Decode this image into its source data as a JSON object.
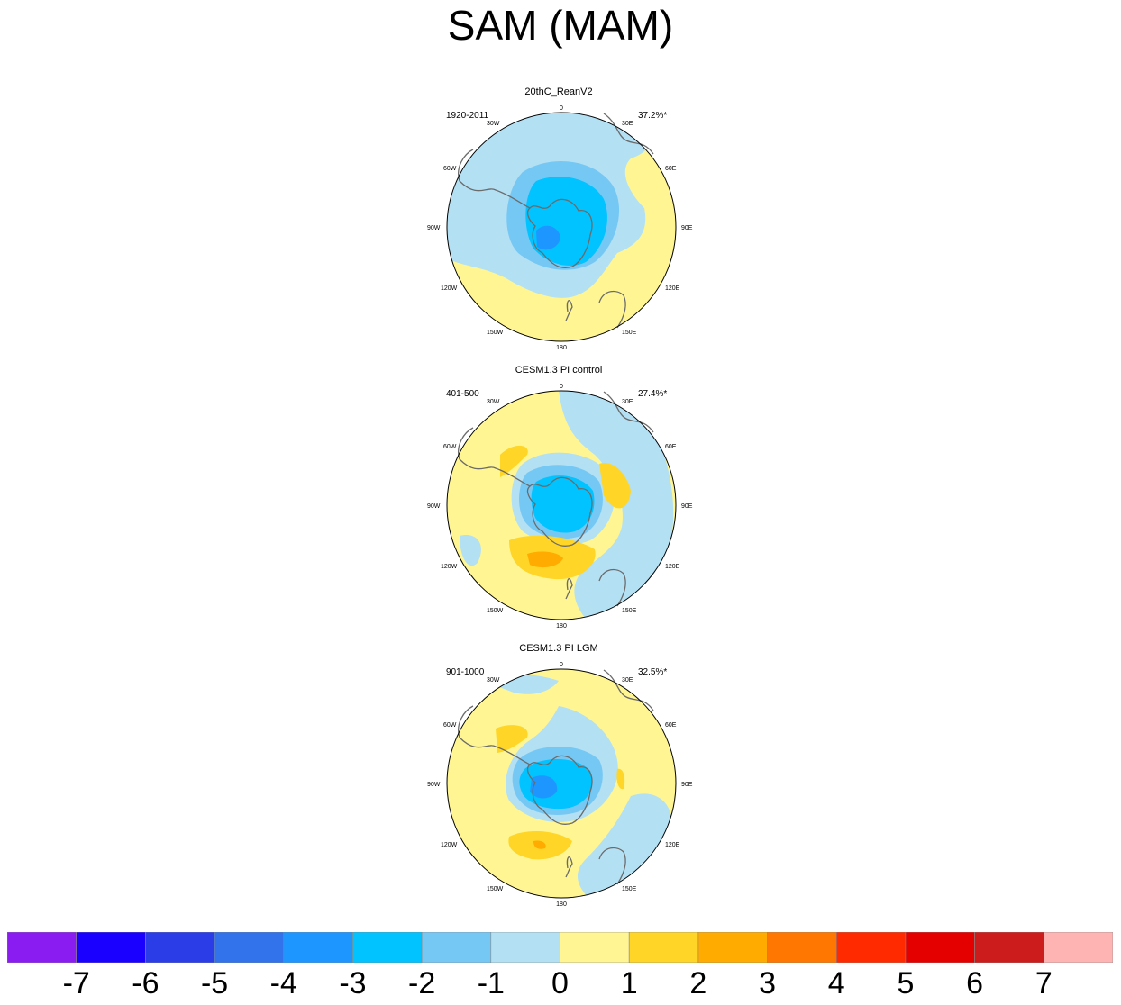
{
  "title": "SAM (MAM)",
  "panels": [
    {
      "title": "20thC_ReanV2",
      "period": "1920-2011",
      "variance": "37.2%*"
    },
    {
      "title": "CESM1.3 PI control",
      "period": "401-500",
      "variance": "27.4%*"
    },
    {
      "title": "CESM1.3 PI LGM",
      "period": "901-1000",
      "variance": "32.5%*"
    }
  ],
  "longitude_labels": [
    "0",
    "30E",
    "60E",
    "90E",
    "120E",
    "150E",
    "180",
    "150W",
    "120W",
    "90W",
    "60W",
    "30W"
  ],
  "colorbar": {
    "labels": [
      "-7",
      "-6",
      "-5",
      "-4",
      "-3",
      "-2",
      "-1",
      "0",
      "1",
      "2",
      "3",
      "4",
      "5",
      "6",
      "7"
    ],
    "colors": [
      "#8a1cf2",
      "#1a00ff",
      "#2b3de6",
      "#3272ea",
      "#1e96ff",
      "#00c3ff",
      "#76c8f4",
      "#b4e0f4",
      "#fff693",
      "#ffd527",
      "#ffab00",
      "#ff7700",
      "#ff2a00",
      "#e50000",
      "#cc1c1c",
      "#ffb4b4"
    ]
  }
}
